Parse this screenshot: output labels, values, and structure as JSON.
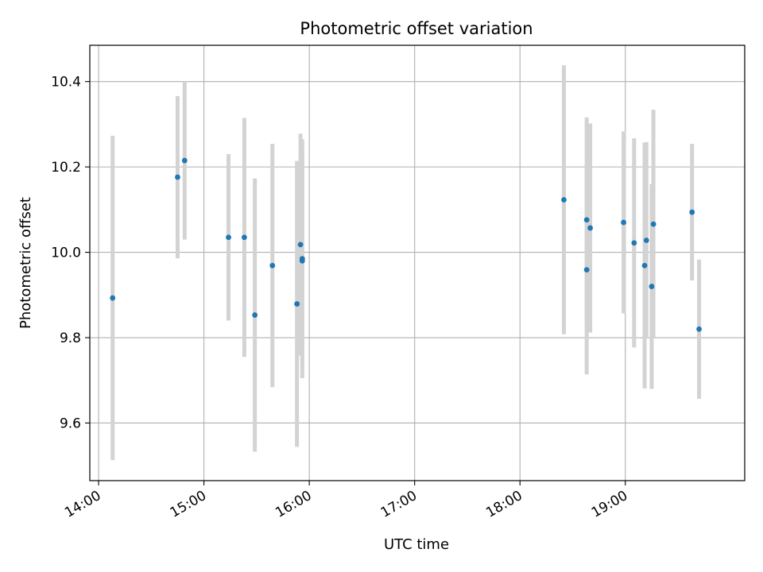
{
  "chart_data": {
    "type": "scatter",
    "title": "Photometric offset variation",
    "xlabel": "UTC time",
    "ylabel": "Photometric offset",
    "x_ticks": [
      "14:00",
      "15:00",
      "16:00",
      "17:00",
      "18:00",
      "19:00"
    ],
    "y_ticks": [
      "9.6",
      "9.8",
      "10.0",
      "10.2",
      "10.4"
    ],
    "xlim": [
      "13:55",
      "20:08"
    ],
    "ylim": [
      9.465,
      10.485
    ],
    "grid": true,
    "marker_color": "#1f77b4",
    "errorbar_color": "#d3d3d3",
    "series": [
      {
        "points": [
          {
            "x": "14:08",
            "y": 9.893,
            "err": 0.38
          },
          {
            "x": "14:45",
            "y": 10.176,
            "err": 0.19
          },
          {
            "x": "14:49",
            "y": 10.215,
            "err": 0.185
          },
          {
            "x": "15:14",
            "y": 10.035,
            "err": 0.195
          },
          {
            "x": "15:23",
            "y": 10.035,
            "err": 0.28
          },
          {
            "x": "15:29",
            "y": 9.853,
            "err": 0.32
          },
          {
            "x": "15:39",
            "y": 9.969,
            "err": 0.285
          },
          {
            "x": "15:53",
            "y": 9.879,
            "err": 0.335
          },
          {
            "x": "15:55",
            "y": 10.018,
            "err": 0.26
          },
          {
            "x": "15:56",
            "y": 9.985,
            "err": 0.28
          },
          {
            "x": "15:56",
            "y": 9.98,
            "err": 0.255
          },
          {
            "x": "18:25",
            "y": 10.123,
            "err": 0.315
          },
          {
            "x": "18:38",
            "y": 10.076,
            "err": 0.24
          },
          {
            "x": "18:38",
            "y": 9.959,
            "err": 0.245
          },
          {
            "x": "18:40",
            "y": 10.057,
            "err": 0.245
          },
          {
            "x": "18:59",
            "y": 10.07,
            "err": 0.213
          },
          {
            "x": "19:05",
            "y": 10.022,
            "err": 0.245
          },
          {
            "x": "19:11",
            "y": 9.969,
            "err": 0.288
          },
          {
            "x": "19:12",
            "y": 10.028,
            "err": 0.23
          },
          {
            "x": "19:15",
            "y": 9.92,
            "err": 0.24
          },
          {
            "x": "19:16",
            "y": 10.066,
            "err": 0.268
          },
          {
            "x": "19:38",
            "y": 10.094,
            "err": 0.16
          },
          {
            "x": "19:42",
            "y": 9.82,
            "err": 0.163
          }
        ]
      }
    ]
  }
}
